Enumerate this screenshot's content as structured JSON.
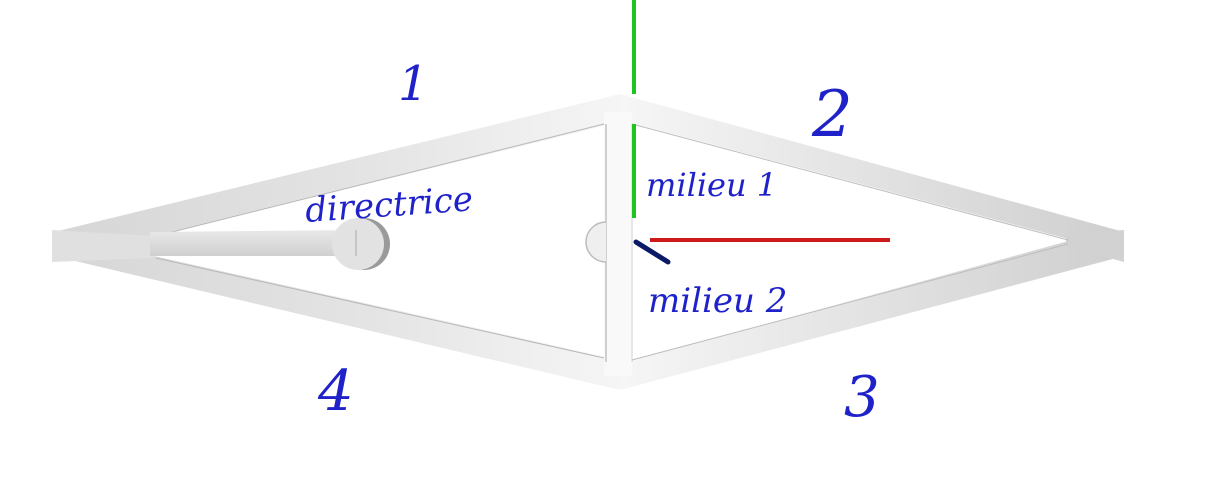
{
  "diagram": {
    "labels": {
      "part_1": "1",
      "part_2": "2",
      "part_3": "3",
      "part_4": "4",
      "directrice": "directrice",
      "milieu_1": "milieu 1",
      "milieu_2": "milieu 2"
    },
    "colors": {
      "ink": "#1f22c9",
      "axis_green": "#1fc41f",
      "axis_red": "#cc1a1a",
      "axis_blue": "#0a1a66",
      "frame_light": "#f4f4f4",
      "frame_mid": "#dcdcdc",
      "frame_dark": "#c8c8c8"
    }
  }
}
